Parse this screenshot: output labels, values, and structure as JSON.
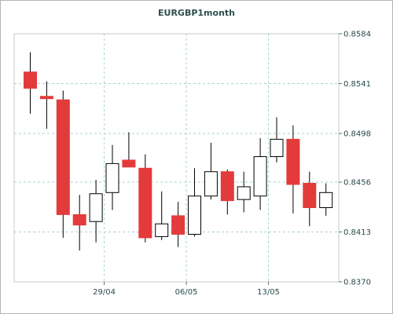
{
  "chart_data": {
    "type": "candlestick",
    "title": "EURGBP1month",
    "xlabel": "",
    "ylabel": "",
    "ylim": [
      0.837,
      0.8584
    ],
    "y_ticks": [
      "0.8584",
      "0.8541",
      "0.8498",
      "0.8456",
      "0.8413",
      "0.8370"
    ],
    "x_ticks": [
      "29/04",
      "06/05",
      "13/05"
    ],
    "colors": {
      "bearish": "#e33b3b",
      "bullish": "#ffffff",
      "outline": "#000000",
      "grid": "#a9d2d2"
    },
    "candles": [
      {
        "open": 0.8551,
        "high": 0.8568,
        "low": 0.8515,
        "close": 0.8537
      },
      {
        "open": 0.853,
        "high": 0.8543,
        "low": 0.8502,
        "close": 0.8528
      },
      {
        "open": 0.8527,
        "high": 0.8535,
        "low": 0.8408,
        "close": 0.8428
      },
      {
        "open": 0.8428,
        "high": 0.8445,
        "low": 0.8397,
        "close": 0.8419
      },
      {
        "open": 0.8422,
        "high": 0.8458,
        "low": 0.8404,
        "close": 0.8446
      },
      {
        "open": 0.8447,
        "high": 0.8488,
        "low": 0.8432,
        "close": 0.8472
      },
      {
        "open": 0.8475,
        "high": 0.8499,
        "low": 0.847,
        "close": 0.8469
      },
      {
        "open": 0.8468,
        "high": 0.848,
        "low": 0.8404,
        "close": 0.8408
      },
      {
        "open": 0.8409,
        "high": 0.8448,
        "low": 0.8406,
        "close": 0.842
      },
      {
        "open": 0.8427,
        "high": 0.8439,
        "low": 0.84,
        "close": 0.8411
      },
      {
        "open": 0.8411,
        "high": 0.8468,
        "low": 0.8409,
        "close": 0.8444
      },
      {
        "open": 0.8444,
        "high": 0.849,
        "low": 0.8441,
        "close": 0.8465
      },
      {
        "open": 0.8465,
        "high": 0.8467,
        "low": 0.8428,
        "close": 0.844
      },
      {
        "open": 0.8441,
        "high": 0.8465,
        "low": 0.843,
        "close": 0.8452
      },
      {
        "open": 0.8444,
        "high": 0.8494,
        "low": 0.8432,
        "close": 0.8478
      },
      {
        "open": 0.8478,
        "high": 0.8512,
        "low": 0.8473,
        "close": 0.8493
      },
      {
        "open": 0.8493,
        "high": 0.8505,
        "low": 0.8429,
        "close": 0.8454
      },
      {
        "open": 0.8455,
        "high": 0.8465,
        "low": 0.8418,
        "close": 0.8434
      },
      {
        "open": 0.8434,
        "high": 0.8455,
        "low": 0.8427,
        "close": 0.8447
      }
    ]
  }
}
